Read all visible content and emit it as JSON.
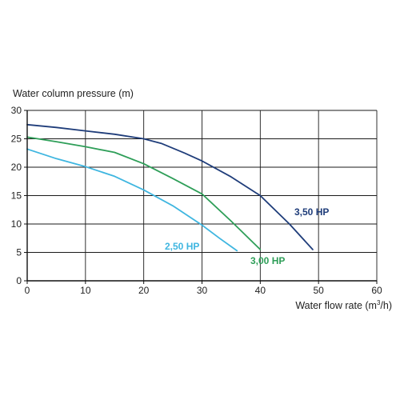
{
  "chart_data": {
    "type": "line",
    "title": "",
    "ylabel": "Water column pressure (m)",
    "xlabel_main": "Water flow rate (m",
    "xlabel_sup": "3",
    "xlabel_tail": "/h)",
    "xlim": [
      0,
      60
    ],
    "ylim": [
      0,
      30
    ],
    "x_ticks": [
      0,
      10,
      20,
      30,
      40,
      50,
      60
    ],
    "y_ticks": [
      0,
      5,
      10,
      15,
      20,
      25,
      30
    ],
    "grid": true,
    "series": [
      {
        "name": "3,50 HP",
        "color": "#1f3d7a",
        "x": [
          0,
          5,
          10,
          15,
          20,
          23,
          27,
          30,
          35,
          40,
          45,
          49
        ],
        "y": [
          27.5,
          27,
          26.4,
          25.8,
          25,
          24.2,
          22.5,
          21.1,
          18.3,
          15,
          10,
          5.5
        ]
      },
      {
        "name": "3,00 HP",
        "color": "#2e9e58",
        "x": [
          0,
          5,
          10,
          15,
          20,
          25,
          30,
          35,
          40
        ],
        "y": [
          25.3,
          24.5,
          23.6,
          22.6,
          20.6,
          18,
          15.3,
          10.5,
          5.5
        ]
      },
      {
        "name": "2,50 HP",
        "color": "#3fb6e0",
        "x": [
          0,
          5,
          10,
          15,
          20,
          25,
          30,
          33,
          36
        ],
        "y": [
          23.2,
          21.5,
          20.1,
          18.4,
          16,
          13.2,
          9.8,
          7.5,
          5.3
        ]
      }
    ]
  }
}
